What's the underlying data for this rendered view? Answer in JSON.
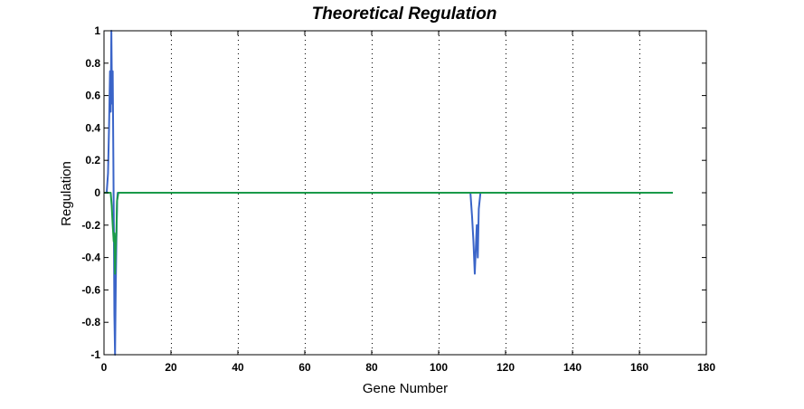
{
  "chart_data": {
    "type": "line",
    "title": "Theoretical Regulation",
    "xlabel": "Gene Number",
    "ylabel": "Regulation",
    "xlim": [
      0,
      180
    ],
    "ylim": [
      -1,
      1
    ],
    "xticks": [
      0,
      20,
      40,
      60,
      80,
      100,
      120,
      140,
      160,
      180
    ],
    "yticks": [
      -1,
      -0.8,
      -0.6,
      -0.4,
      -0.2,
      0,
      0.2,
      0.4,
      0.6,
      0.8,
      1
    ],
    "ytick_labels": [
      "-1",
      "-0.8",
      "-0.6",
      "-0.4",
      "-0.2",
      "0",
      "0.2",
      "0.4",
      "0.6",
      "0.8",
      "1"
    ],
    "grid": "x-dotted",
    "series": [
      {
        "color": "#3a64c8",
        "x": [
          0,
          0.8,
          1.2,
          1.5,
          1.8,
          2.0,
          2.2,
          2.4,
          2.6,
          2.8,
          3.0,
          3.1,
          3.3,
          3.5,
          3.7,
          3.9,
          4.1,
          4.4,
          5,
          109.5,
          110,
          110.4,
          110.8,
          111.1,
          111.4,
          111.7,
          112.0,
          112.5,
          170
        ],
        "y": [
          0,
          0,
          0.12,
          0.4,
          0.75,
          0.5,
          1.0,
          0.55,
          0.75,
          0.2,
          -0.4,
          -0.75,
          -1.0,
          -0.6,
          -0.3,
          -0.05,
          0,
          0,
          0,
          0,
          -0.15,
          -0.3,
          -0.5,
          -0.35,
          -0.2,
          -0.4,
          -0.1,
          0,
          0
        ]
      },
      {
        "color": "#1a9a4a",
        "x": [
          0,
          2.0,
          2.3,
          2.6,
          2.9,
          3.1,
          3.3,
          3.5,
          3.7,
          3.9,
          4.3,
          170
        ],
        "y": [
          0,
          0,
          -0.08,
          -0.2,
          -0.3,
          -0.25,
          -0.5,
          -0.35,
          -0.25,
          -0.05,
          0,
          0
        ]
      }
    ]
  }
}
